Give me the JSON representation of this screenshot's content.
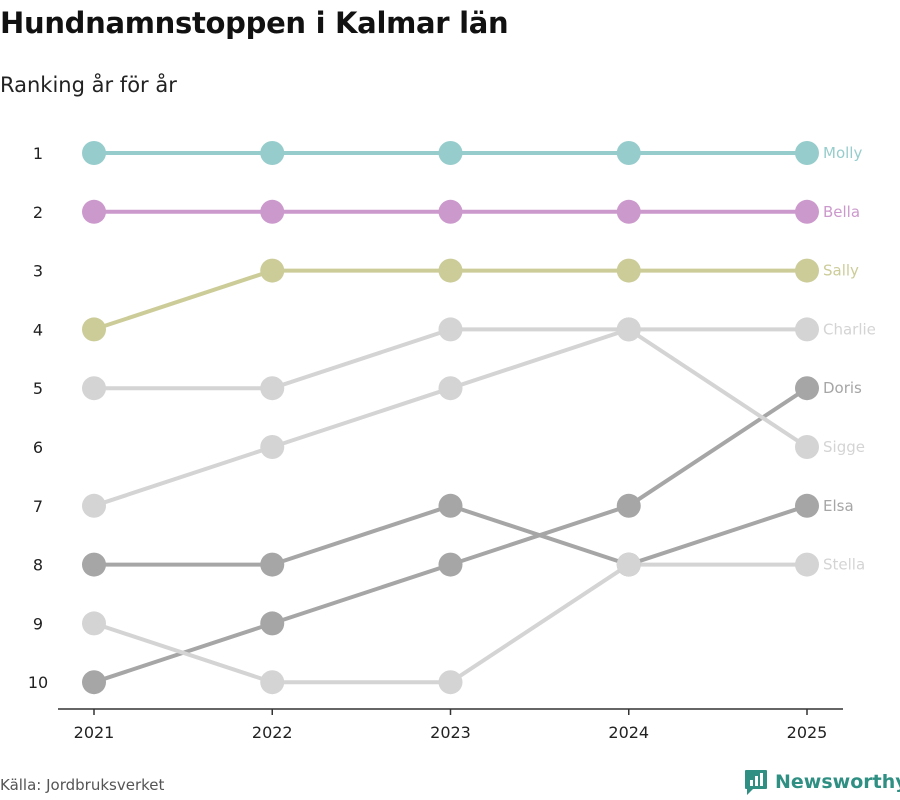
{
  "header": {
    "title": "Hundnamnstoppen i Kalmar län",
    "subtitle": "Ranking år för år"
  },
  "footer": {
    "source": "Källa: Jordbruksverket",
    "brand": "Newsworthy"
  },
  "colors": {
    "Molly": "#96cdcc",
    "Bella": "#cc99cc",
    "Sally": "#cccc99",
    "light_gray": "#d4d4d4",
    "dark_gray": "#a6a6a6",
    "brand": "#2f8f83"
  },
  "chart_data": {
    "type": "line",
    "title": "Hundnamnstoppen i Kalmar län",
    "subtitle": "Ranking år för år",
    "x": [
      "2021",
      "2022",
      "2023",
      "2024",
      "2025"
    ],
    "yticks": [
      1,
      2,
      3,
      4,
      5,
      6,
      7,
      8,
      9,
      10
    ],
    "ylim": [
      1,
      10
    ],
    "y_inverted": true,
    "series": [
      {
        "name": "Molly",
        "values": [
          1,
          1,
          1,
          1,
          1
        ],
        "color": "#96cdcc"
      },
      {
        "name": "Bella",
        "values": [
          2,
          2,
          2,
          2,
          2
        ],
        "color": "#cc99cc"
      },
      {
        "name": "Sally",
        "values": [
          4,
          3,
          3,
          3,
          3
        ],
        "color": "#cccc99"
      },
      {
        "name": "Charlie",
        "values": [
          5,
          5,
          4,
          4,
          4
        ],
        "color": "#d4d4d4"
      },
      {
        "name": "Sigge",
        "values": [
          7,
          6,
          5,
          4,
          6
        ],
        "color": "#d4d4d4"
      },
      {
        "name": "Stella",
        "values": [
          9,
          10,
          10,
          8,
          8
        ],
        "color": "#d4d4d4"
      },
      {
        "name": "Doris",
        "values": [
          10,
          9,
          8,
          7,
          5
        ],
        "color": "#a6a6a6"
      },
      {
        "name": "Elsa",
        "values": [
          8,
          8,
          7,
          8,
          7
        ],
        "color": "#a6a6a6"
      }
    ]
  }
}
